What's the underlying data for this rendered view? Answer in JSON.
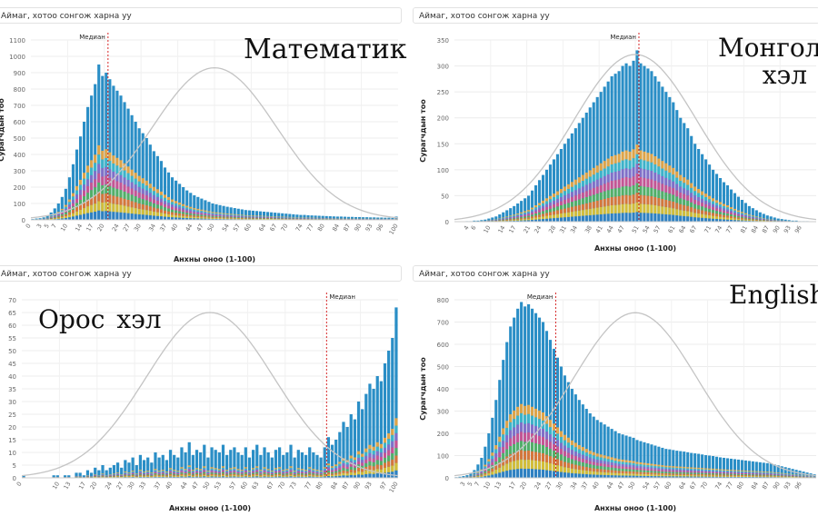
{
  "filter_placeholder": "Аймаг, хотоо сонгож харна уу",
  "median_label": "Медиан",
  "xlabel": "Анхны оноо (1-100)",
  "ylabel": "Сурагчдын тоо",
  "colors": {
    "bar_top": "#2a8ec6",
    "curve": "#c4c4c4",
    "median_line": "#d62728",
    "grid": "#ececec",
    "stack": [
      "#2f7ec0",
      "#e6c229",
      "#e8742b",
      "#56b35c",
      "#d64f8e",
      "#8b6bc8",
      "#3fb7c9",
      "#f3a63a"
    ]
  },
  "chart_data": [
    {
      "id": "math",
      "type": "bar",
      "title": "Математик",
      "xlabel": "Анхны оноо (1-100)",
      "ylabel": "Сурагчдын тоо",
      "ylim": [
        0,
        1100
      ],
      "yticks": [
        0,
        100,
        200,
        300,
        400,
        500,
        600,
        700,
        800,
        900,
        1000,
        1100
      ],
      "xticks": [
        0,
        3,
        5,
        7,
        10,
        14,
        17,
        20,
        24,
        27,
        30,
        34,
        37,
        40,
        44,
        47,
        50,
        54,
        57,
        60,
        64,
        67,
        70,
        74,
        77,
        80,
        84,
        87,
        90,
        93,
        96,
        100
      ],
      "median": 21,
      "x": [
        1,
        2,
        3,
        4,
        5,
        6,
        7,
        8,
        9,
        10,
        11,
        12,
        13,
        14,
        15,
        16,
        17,
        18,
        19,
        20,
        21,
        22,
        23,
        24,
        25,
        26,
        27,
        28,
        29,
        30,
        31,
        32,
        33,
        34,
        35,
        36,
        37,
        38,
        39,
        40,
        41,
        42,
        43,
        44,
        45,
        46,
        47,
        48,
        49,
        50,
        51,
        52,
        53,
        54,
        55,
        56,
        57,
        58,
        59,
        60,
        61,
        62,
        63,
        64,
        65,
        66,
        67,
        68,
        69,
        70,
        71,
        72,
        73,
        74,
        75,
        76,
        77,
        78,
        79,
        80,
        81,
        82,
        83,
        84,
        85,
        86,
        87,
        88,
        89,
        90,
        91,
        92,
        93,
        94,
        95,
        96,
        97,
        98,
        99,
        100
      ],
      "values": [
        5,
        8,
        10,
        15,
        25,
        45,
        70,
        100,
        140,
        190,
        260,
        340,
        430,
        510,
        600,
        690,
        760,
        830,
        950,
        880,
        900,
        860,
        820,
        790,
        760,
        720,
        680,
        640,
        600,
        560,
        530,
        500,
        460,
        420,
        390,
        360,
        320,
        290,
        260,
        240,
        220,
        200,
        180,
        165,
        150,
        140,
        130,
        120,
        110,
        100,
        95,
        90,
        85,
        80,
        76,
        72,
        68,
        64,
        60,
        58,
        56,
        54,
        52,
        50,
        48,
        46,
        44,
        42,
        40,
        38,
        36,
        34,
        32,
        30,
        30,
        28,
        27,
        26,
        25,
        24,
        23,
        22,
        21,
        20,
        20,
        19,
        18,
        18,
        17,
        17,
        16,
        16,
        15,
        15,
        14,
        14,
        13,
        13,
        12,
        20
      ],
      "normal_peak": 930
    },
    {
      "id": "mongol",
      "type": "bar",
      "title": "Монгол\nхэл",
      "xlabel": "Анхны оноо (1-100)",
      "ylabel": "Сурагчдын тоо",
      "ylim": [
        0,
        350
      ],
      "yticks": [
        0,
        50,
        100,
        150,
        200,
        250,
        300,
        350
      ],
      "xticks": [
        4,
        6,
        10,
        14,
        17,
        21,
        24,
        28,
        31,
        34,
        38,
        41,
        44,
        47,
        51,
        54,
        57,
        61,
        64,
        67,
        71,
        74,
        77,
        81,
        84,
        87,
        90,
        93,
        96
      ],
      "median": 51,
      "x": [
        1,
        2,
        3,
        4,
        5,
        6,
        7,
        8,
        9,
        10,
        11,
        12,
        13,
        14,
        15,
        16,
        17,
        18,
        19,
        20,
        21,
        22,
        23,
        24,
        25,
        26,
        27,
        28,
        29,
        30,
        31,
        32,
        33,
        34,
        35,
        36,
        37,
        38,
        39,
        40,
        41,
        42,
        43,
        44,
        45,
        46,
        47,
        48,
        49,
        50,
        51,
        52,
        53,
        54,
        55,
        56,
        57,
        58,
        59,
        60,
        61,
        62,
        63,
        64,
        65,
        66,
        67,
        68,
        69,
        70,
        71,
        72,
        73,
        74,
        75,
        76,
        77,
        78,
        79,
        80,
        81,
        82,
        83,
        84,
        85,
        86,
        87,
        88,
        89,
        90,
        91,
        92,
        93,
        94,
        95,
        96,
        97,
        98,
        99,
        100
      ],
      "values": [
        0,
        0,
        0,
        1,
        1,
        2,
        2,
        3,
        4,
        6,
        8,
        10,
        14,
        18,
        22,
        26,
        30,
        35,
        40,
        45,
        50,
        60,
        70,
        80,
        90,
        100,
        110,
        120,
        130,
        140,
        150,
        160,
        170,
        180,
        190,
        200,
        210,
        220,
        230,
        240,
        250,
        260,
        270,
        280,
        285,
        290,
        300,
        305,
        300,
        310,
        330,
        305,
        300,
        295,
        290,
        280,
        270,
        260,
        250,
        240,
        230,
        215,
        200,
        190,
        180,
        165,
        150,
        140,
        130,
        120,
        110,
        100,
        92,
        84,
        76,
        70,
        62,
        55,
        48,
        42,
        36,
        30,
        26,
        22,
        18,
        15,
        12,
        10,
        8,
        6,
        5,
        4,
        3,
        2,
        2,
        1,
        1,
        1,
        0,
        0
      ],
      "normal_peak": 322
    },
    {
      "id": "oros",
      "type": "bar",
      "title": "Орос хэл",
      "xlabel": "Анхны оноо (1-100)",
      "ylabel": "Сурагчдын тоо",
      "ylim": [
        0,
        70
      ],
      "yticks": [
        0,
        5,
        10,
        15,
        20,
        25,
        30,
        35,
        40,
        45,
        50,
        55,
        60,
        65,
        70
      ],
      "xticks": [
        0,
        10,
        13,
        17,
        20,
        24,
        27,
        30,
        33,
        37,
        40,
        44,
        47,
        50,
        53,
        57,
        60,
        63,
        67,
        70,
        73,
        77,
        80,
        84,
        87,
        90,
        93,
        97,
        100
      ],
      "median": 81,
      "x": [
        1,
        2,
        3,
        4,
        5,
        6,
        7,
        8,
        9,
        10,
        11,
        12,
        13,
        14,
        15,
        16,
        17,
        18,
        19,
        20,
        21,
        22,
        23,
        24,
        25,
        26,
        27,
        28,
        29,
        30,
        31,
        32,
        33,
        34,
        35,
        36,
        37,
        38,
        39,
        40,
        41,
        42,
        43,
        44,
        45,
        46,
        47,
        48,
        49,
        50,
        51,
        52,
        53,
        54,
        55,
        56,
        57,
        58,
        59,
        60,
        61,
        62,
        63,
        64,
        65,
        66,
        67,
        68,
        69,
        70,
        71,
        72,
        73,
        74,
        75,
        76,
        77,
        78,
        79,
        80,
        81,
        82,
        83,
        84,
        85,
        86,
        87,
        88,
        89,
        90,
        91,
        92,
        93,
        94,
        95,
        96,
        97,
        98,
        99,
        100
      ],
      "values": [
        1,
        0,
        0,
        0,
        0,
        0,
        0,
        0,
        1,
        1,
        0,
        1,
        1,
        0,
        2,
        2,
        1,
        3,
        2,
        4,
        3,
        5,
        3,
        4,
        5,
        6,
        4,
        7,
        6,
        8,
        5,
        9,
        7,
        8,
        6,
        10,
        8,
        9,
        7,
        11,
        9,
        8,
        12,
        10,
        14,
        9,
        11,
        10,
        13,
        8,
        12,
        11,
        10,
        13,
        9,
        11,
        12,
        10,
        9,
        12,
        8,
        11,
        13,
        9,
        12,
        10,
        8,
        11,
        12,
        9,
        10,
        13,
        8,
        11,
        10,
        9,
        12,
        10,
        9,
        8,
        12,
        16,
        13,
        15,
        18,
        22,
        20,
        25,
        23,
        30,
        27,
        33,
        37,
        35,
        40,
        38,
        45,
        50,
        55,
        67
      ],
      "normal_peak": 65
    },
    {
      "id": "english",
      "type": "bar",
      "title": "English",
      "xlabel": "Анхны оноо (1-100)",
      "ylabel": "Сурагчдын тоо",
      "ylim": [
        0,
        800
      ],
      "yticks": [
        0,
        100,
        200,
        300,
        400,
        500,
        600,
        700,
        800
      ],
      "xticks": [
        3,
        5,
        7,
        10,
        13,
        17,
        20,
        24,
        27,
        30,
        34,
        37,
        40,
        44,
        47,
        50,
        54,
        57,
        60,
        64,
        67,
        70,
        74,
        77,
        80,
        84,
        87,
        90,
        93,
        96
      ],
      "median": 28,
      "x": [
        1,
        2,
        3,
        4,
        5,
        6,
        7,
        8,
        9,
        10,
        11,
        12,
        13,
        14,
        15,
        16,
        17,
        18,
        19,
        20,
        21,
        22,
        23,
        24,
        25,
        26,
        27,
        28,
        29,
        30,
        31,
        32,
        33,
        34,
        35,
        36,
        37,
        38,
        39,
        40,
        41,
        42,
        43,
        44,
        45,
        46,
        47,
        48,
        49,
        50,
        51,
        52,
        53,
        54,
        55,
        56,
        57,
        58,
        59,
        60,
        61,
        62,
        63,
        64,
        65,
        66,
        67,
        68,
        69,
        70,
        71,
        72,
        73,
        74,
        75,
        76,
        77,
        78,
        79,
        80,
        81,
        82,
        83,
        84,
        85,
        86,
        87,
        88,
        89,
        90,
        91,
        92,
        93,
        94,
        95,
        96,
        97,
        98,
        99,
        100
      ],
      "values": [
        3,
        5,
        8,
        12,
        20,
        35,
        60,
        90,
        140,
        200,
        270,
        350,
        440,
        530,
        610,
        680,
        720,
        760,
        790,
        770,
        780,
        760,
        740,
        720,
        700,
        660,
        620,
        580,
        540,
        500,
        460,
        430,
        400,
        375,
        350,
        330,
        310,
        290,
        275,
        260,
        250,
        240,
        230,
        220,
        210,
        200,
        195,
        190,
        185,
        180,
        170,
        165,
        160,
        155,
        150,
        145,
        140,
        135,
        130,
        128,
        125,
        122,
        120,
        118,
        115,
        112,
        110,
        108,
        105,
        102,
        100,
        98,
        95,
        92,
        90,
        88,
        86,
        84,
        82,
        80,
        78,
        76,
        74,
        72,
        70,
        68,
        66,
        64,
        60,
        56,
        52,
        48,
        44,
        40,
        36,
        32,
        28,
        24,
        20,
        16
      ],
      "normal_peak": 742
    }
  ]
}
